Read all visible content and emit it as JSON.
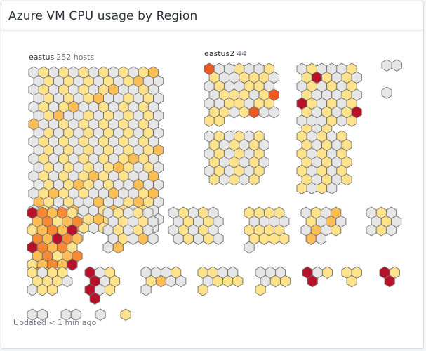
{
  "widget": {
    "title": "Azure VM CPU usage by Region",
    "updated_text": "Updated < 1 min ago"
  },
  "colors": {
    "idle": "#e6e6e6",
    "low": "#fee28c",
    "medium": "#fdbe55",
    "high": "#f68a34",
    "very_high": "#ee5b22",
    "critical": "#b8112a"
  },
  "groups": [
    {
      "id": "eastus",
      "label": "eastus",
      "count_text": "252 hosts",
      "hosts": 252,
      "pattern": "01012001010021010100210101010121010101012101010101210101010101010101010101010101"
    },
    {
      "id": "eastus2",
      "label": "eastus2",
      "count_text": "44",
      "hosts": 44,
      "pattern": "410100101101010110"
    },
    {
      "id": "g3",
      "hosts": 45,
      "pattern": "0101500101010101"
    },
    {
      "id": "g4",
      "hosts": 2,
      "pattern": "0"
    },
    {
      "id": "g5",
      "hosts": 1,
      "pattern": "0"
    },
    {
      "id": "g6",
      "hosts": 35,
      "pattern": "010101010101"
    },
    {
      "id": "g7",
      "hosts": 34,
      "pattern": "101010101010"
    },
    {
      "id": "g8",
      "hosts": 37,
      "pattern": "52321323"
    },
    {
      "id": "g9",
      "hosts": 22,
      "pattern": "010203010101"
    },
    {
      "id": "g10",
      "hosts": 20,
      "pattern": "01010101"
    },
    {
      "id": "g11",
      "hosts": 17,
      "pattern": "1010101"
    },
    {
      "id": "g12",
      "hosts": 14,
      "pattern": "010201"
    },
    {
      "id": "g13",
      "hosts": 9,
      "pattern": "0101"
    },
    {
      "id": "g14",
      "hosts": 11,
      "pattern": "11011"
    },
    {
      "id": "g15",
      "hosts": 10,
      "pattern": "5010"
    },
    {
      "id": "g16",
      "hosts": 9,
      "pattern": "01020"
    },
    {
      "id": "g17",
      "hosts": 9,
      "pattern": "10110"
    },
    {
      "id": "g18",
      "hosts": 7,
      "pattern": "01010"
    },
    {
      "id": "g19",
      "hosts": 4,
      "pattern": "5410"
    },
    {
      "id": "g20",
      "hosts": 3,
      "pattern": "11"
    },
    {
      "id": "g21",
      "hosts": 3,
      "pattern": "515"
    },
    {
      "id": "g22",
      "hosts": 2,
      "pattern": "0"
    },
    {
      "id": "g23",
      "hosts": 2,
      "pattern": "0"
    },
    {
      "id": "g24",
      "hosts": 1,
      "pattern": "0"
    },
    {
      "id": "g25",
      "hosts": 1,
      "pattern": "1"
    }
  ]
}
